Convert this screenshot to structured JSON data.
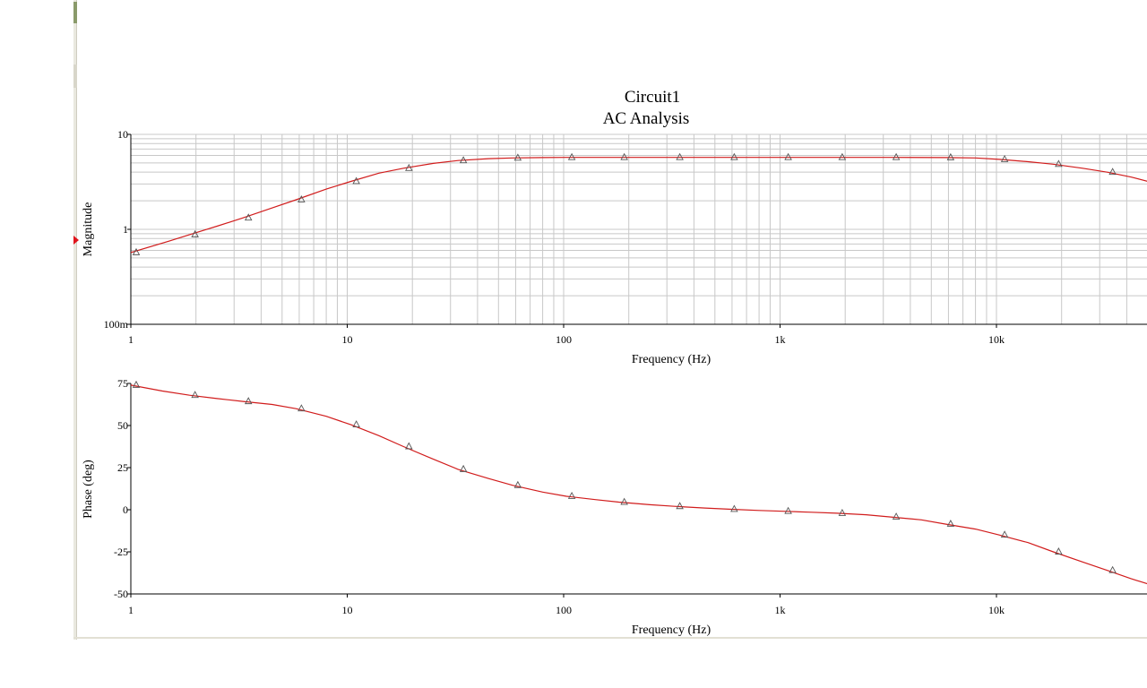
{
  "chart_data": [
    {
      "type": "line",
      "title": "Circuit1",
      "subtitle": "AC Analysis",
      "xlabel": "Frequency (Hz)",
      "ylabel": "Magnitude",
      "xscale": "log",
      "yscale": "log",
      "xlim": [
        1,
        50000
      ],
      "ylim": [
        0.1,
        10
      ],
      "x_ticks": [
        {
          "value": 1,
          "label": "1"
        },
        {
          "value": 10,
          "label": "10"
        },
        {
          "value": 100,
          "label": "100"
        },
        {
          "value": 1000,
          "label": "1k"
        },
        {
          "value": 10000,
          "label": "10k"
        }
      ],
      "y_ticks": [
        {
          "value": 0.1,
          "label": "100m"
        },
        {
          "value": 1,
          "label": "1"
        },
        {
          "value": 10,
          "label": "10"
        }
      ],
      "grid": true,
      "series": [
        {
          "color": "#d11c1c",
          "marker": "triangle",
          "x": [
            1,
            1.5,
            1.87,
            2.5,
            3.3,
            4.5,
            5.8,
            8,
            10.4,
            14,
            18.2,
            25,
            32.5,
            45,
            58,
            80,
            103,
            180,
            325,
            580,
            1030,
            1830,
            3250,
            5800,
            8000,
            10300,
            14000,
            18300,
            25000,
            32500,
            42000,
            50000
          ],
          "y": [
            0.57,
            0.75,
            0.88,
            1.08,
            1.32,
            1.68,
            2.05,
            2.65,
            3.2,
            3.9,
            4.4,
            4.95,
            5.3,
            5.55,
            5.65,
            5.7,
            5.72,
            5.72,
            5.72,
            5.72,
            5.72,
            5.72,
            5.72,
            5.7,
            5.65,
            5.45,
            5.15,
            4.85,
            4.4,
            4.0,
            3.55,
            3.2
          ],
          "marker_x": [
            1,
            1.87,
            3.3,
            5.8,
            10.4,
            18.2,
            32.5,
            58,
            103,
            180,
            325,
            580,
            1030,
            1830,
            3250,
            5800,
            10300,
            18300,
            32500
          ]
        }
      ]
    },
    {
      "type": "line",
      "xlabel": "Frequency (Hz)",
      "ylabel": "Phase (deg)",
      "xscale": "log",
      "xlim": [
        1,
        50000
      ],
      "ylim": [
        -50,
        75
      ],
      "x_ticks": [
        {
          "value": 1,
          "label": "1"
        },
        {
          "value": 10,
          "label": "10"
        },
        {
          "value": 100,
          "label": "100"
        },
        {
          "value": 1000,
          "label": "1k"
        },
        {
          "value": 10000,
          "label": "10k"
        }
      ],
      "y_ticks": [
        {
          "value": 75,
          "label": "75"
        },
        {
          "value": 50,
          "label": "50"
        },
        {
          "value": 25,
          "label": "25"
        },
        {
          "value": 0,
          "label": "0"
        },
        {
          "value": -25,
          "label": "-25"
        },
        {
          "value": -50,
          "label": "-50"
        }
      ],
      "grid": false,
      "series": [
        {
          "color": "#d11c1c",
          "marker": "triangle",
          "x": [
            1,
            1.4,
            1.87,
            2.5,
            3.3,
            4.5,
            5.8,
            8,
            10.4,
            14,
            18.2,
            25,
            32.5,
            45,
            58,
            80,
            103,
            140,
            180,
            250,
            325,
            450,
            580,
            800,
            1030,
            1400,
            1830,
            2500,
            3250,
            4500,
            5800,
            8000,
            10300,
            14000,
            18300,
            25000,
            32500,
            42000,
            50000
          ],
          "y": [
            74,
            70.5,
            68,
            66,
            64.3,
            62.5,
            60,
            55.5,
            50.5,
            44,
            37.5,
            30,
            24,
            18.5,
            14.5,
            10.5,
            8,
            6,
            4.5,
            3,
            2,
            1,
            0.3,
            -0.4,
            -0.9,
            -1.5,
            -2.1,
            -3,
            -4.3,
            -6,
            -8.5,
            -11.5,
            -15,
            -19.5,
            -25,
            -31,
            -36,
            -41,
            -44
          ],
          "marker_x": [
            1,
            1.87,
            3.3,
            5.8,
            10.4,
            18.2,
            32.5,
            58,
            103,
            180,
            325,
            580,
            1030,
            1830,
            3250,
            5800,
            10300,
            18300,
            32500
          ]
        }
      ]
    }
  ]
}
